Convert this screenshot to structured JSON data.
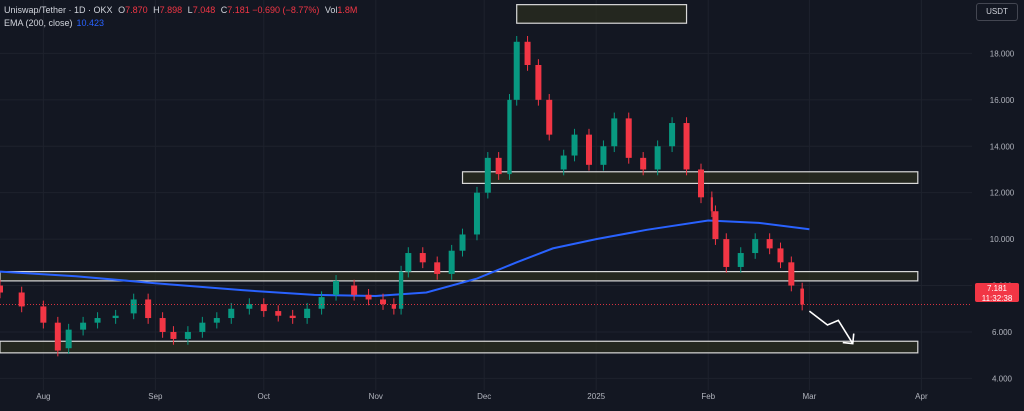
{
  "header": {
    "symbol": "Uniswap/Tether · 1D · OKX",
    "open_label": "O",
    "open": "7.870",
    "high_label": "H",
    "high": "7.898",
    "low_label": "L",
    "low": "7.048",
    "close_label": "C",
    "close": "7.181",
    "change": "−0.690 (−8.77%)",
    "vol_label": "Vol",
    "vol": "1.8M",
    "ema_label": "EMA (200, close)",
    "ema_value": "10.423"
  },
  "currency": "USDT",
  "last_price": {
    "price": "7.181",
    "countdown": "11:32:38"
  },
  "colors": {
    "background": "#131722",
    "up": "#089981",
    "down": "#f23645",
    "ema": "#2962ff",
    "zone_fill": "#2b2e1f",
    "zone_stroke": "#d9d9d9"
  },
  "chart_data": {
    "type": "candlestick",
    "title": "",
    "xlabel": "",
    "ylabel": "",
    "ylim": [
      3.5,
      20.3
    ],
    "y_ticks": [
      "4.000",
      "6.000",
      "8.000",
      "10.000",
      "12.000",
      "14.000",
      "16.000",
      "18.000"
    ],
    "x_ticks": [
      "Aug",
      "Sep",
      "Oct",
      "Nov",
      "Dec",
      "2025",
      "Feb",
      "Mar",
      "Apr"
    ],
    "x_tick_dates": [
      "2024-08-01",
      "2024-09-01",
      "2024-10-01",
      "2024-11-01",
      "2024-12-01",
      "2025-01-01",
      "2025-02-01",
      "2025-03-01",
      "2025-04-01"
    ],
    "x_range": [
      "2024-07-20",
      "2025-04-15"
    ],
    "grid": true,
    "series": [
      {
        "type": "candles",
        "points": [
          [
            "2024-07-20",
            8.0,
            7.7
          ],
          [
            "2024-07-26",
            7.7,
            7.1
          ],
          [
            "2024-08-01",
            7.1,
            6.4
          ],
          [
            "2024-08-05",
            6.4,
            5.2
          ],
          [
            "2024-08-08",
            5.3,
            6.1
          ],
          [
            "2024-08-12",
            6.1,
            6.4
          ],
          [
            "2024-08-16",
            6.4,
            6.6
          ],
          [
            "2024-08-21",
            6.6,
            6.7
          ],
          [
            "2024-08-26",
            6.8,
            7.4
          ],
          [
            "2024-08-30",
            7.4,
            6.6
          ],
          [
            "2024-09-03",
            6.6,
            6.0
          ],
          [
            "2024-09-06",
            6.0,
            5.7
          ],
          [
            "2024-09-10",
            5.7,
            6.0
          ],
          [
            "2024-09-14",
            6.0,
            6.4
          ],
          [
            "2024-09-18",
            6.4,
            6.6
          ],
          [
            "2024-09-22",
            6.6,
            7.0
          ],
          [
            "2024-09-27",
            7.0,
            7.2
          ],
          [
            "2024-10-01",
            7.2,
            6.9
          ],
          [
            "2024-10-05",
            6.9,
            6.7
          ],
          [
            "2024-10-09",
            6.7,
            6.6
          ],
          [
            "2024-10-13",
            6.6,
            7.0
          ],
          [
            "2024-10-17",
            7.0,
            7.5
          ],
          [
            "2024-10-21",
            7.6,
            8.2
          ],
          [
            "2024-10-26",
            8.0,
            7.6
          ],
          [
            "2024-10-30",
            7.6,
            7.4
          ],
          [
            "2024-11-03",
            7.4,
            7.2
          ],
          [
            "2024-11-06",
            7.2,
            7.0
          ],
          [
            "2024-11-08",
            7.0,
            8.6
          ],
          [
            "2024-11-10",
            8.6,
            9.4
          ],
          [
            "2024-11-14",
            9.4,
            9.0
          ],
          [
            "2024-11-18",
            9.0,
            8.5
          ],
          [
            "2024-11-22",
            8.5,
            9.5
          ],
          [
            "2024-11-25",
            9.5,
            10.2
          ],
          [
            "2024-11-29",
            10.2,
            12.0
          ],
          [
            "2024-12-02",
            12.0,
            13.5
          ],
          [
            "2024-12-05",
            13.5,
            12.8
          ],
          [
            "2024-12-08",
            12.8,
            16.0
          ],
          [
            "2024-12-10",
            16.0,
            18.5
          ],
          [
            "2024-12-13",
            18.5,
            17.5
          ],
          [
            "2024-12-16",
            17.5,
            16.0
          ],
          [
            "2024-12-19",
            16.0,
            14.5
          ],
          [
            "2024-12-23",
            13.0,
            13.6
          ],
          [
            "2024-12-26",
            13.6,
            14.5
          ],
          [
            "2024-12-30",
            14.5,
            13.2
          ],
          [
            "2025-01-03",
            13.2,
            14.0
          ],
          [
            "2025-01-06",
            14.0,
            15.2
          ],
          [
            "2025-01-10",
            15.2,
            13.5
          ],
          [
            "2025-01-14",
            13.5,
            13.0
          ],
          [
            "2025-01-18",
            13.0,
            14.0
          ],
          [
            "2025-01-22",
            14.0,
            15.0
          ],
          [
            "2025-01-26",
            15.0,
            13.0
          ],
          [
            "2025-01-30",
            13.0,
            11.8
          ],
          [
            "2025-02-02",
            11.8,
            11.2
          ],
          [
            "2025-02-03",
            11.2,
            10.0
          ],
          [
            "2025-02-06",
            10.0,
            8.8
          ],
          [
            "2025-02-10",
            8.8,
            9.4
          ],
          [
            "2025-02-14",
            9.4,
            10.0
          ],
          [
            "2025-02-18",
            10.0,
            9.6
          ],
          [
            "2025-02-21",
            9.6,
            9.0
          ],
          [
            "2025-02-24",
            9.0,
            8.0
          ],
          [
            "2025-02-27",
            7.87,
            7.181
          ]
        ]
      },
      {
        "type": "line",
        "name": "EMA (200, close)",
        "points": [
          [
            "2024-07-20",
            8.6
          ],
          [
            "2024-08-10",
            8.4
          ],
          [
            "2024-09-01",
            8.1
          ],
          [
            "2024-09-25",
            7.8
          ],
          [
            "2024-10-15",
            7.6
          ],
          [
            "2024-11-01",
            7.55
          ],
          [
            "2024-11-15",
            7.7
          ],
          [
            "2024-11-29",
            8.3
          ],
          [
            "2024-12-10",
            9.0
          ],
          [
            "2024-12-20",
            9.6
          ],
          [
            "2025-01-01",
            10.0
          ],
          [
            "2025-01-15",
            10.4
          ],
          [
            "2025-02-01",
            10.8
          ],
          [
            "2025-02-15",
            10.7
          ],
          [
            "2025-03-01",
            10.423
          ]
        ]
      }
    ],
    "zones": [
      {
        "from": "2024-12-10",
        "to": "2025-01-26",
        "low": 19.3,
        "high": 20.1
      },
      {
        "from": "2024-11-25",
        "to": "2025-03-31",
        "low": 12.4,
        "high": 12.9
      },
      {
        "from": "2024-07-20",
        "to": "2025-03-31",
        "low": 8.2,
        "high": 8.6
      },
      {
        "from": "2024-07-20",
        "to": "2025-03-31",
        "low": 5.1,
        "high": 5.6
      }
    ],
    "arrow": [
      [
        "2025-03-01",
        6.9
      ],
      [
        "2025-03-06",
        6.3
      ],
      [
        "2025-03-09",
        6.5
      ],
      [
        "2025-03-13",
        5.5
      ]
    ]
  }
}
